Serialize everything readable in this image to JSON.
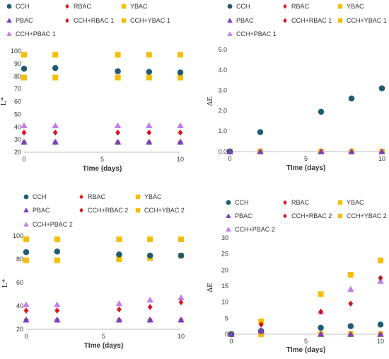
{
  "colors": {
    "CCH": "#1F5C74",
    "RBAC": "#E3121B",
    "YBAC": "#F7BE00",
    "PBAC": "#7E3FBF",
    "CCH_RBAC": "#C8141E",
    "CCH_YBAC": "#F7BE00",
    "CCH_PBAC": "#C77AF0"
  },
  "chart_data": [
    {
      "type": "scatter",
      "title": "",
      "xlabel": "TIme (days)",
      "ylabel": "L*",
      "xlim": [
        0,
        10
      ],
      "ylim": [
        20,
        100
      ],
      "xticks": [
        "0",
        "5",
        "10"
      ],
      "yticks": [
        "20",
        "30",
        "40",
        "50",
        "60",
        "70",
        "80",
        "90",
        "100"
      ],
      "x": [
        0,
        2,
        6,
        8,
        10
      ],
      "legend": [
        "CCH",
        "RBAC",
        "YBAC",
        "PBAC",
        "CCH+RBAC 1",
        "CCH+YBAC 1",
        "CCH+PBAC 1"
      ],
      "series": [
        {
          "name": "CCH",
          "values": [
            86,
            86.5,
            84,
            83.5,
            83
          ]
        },
        {
          "name": "RBAC",
          "values": [
            35.5,
            35.5,
            35.5,
            35.5,
            35.5
          ]
        },
        {
          "name": "YBAC",
          "values": [
            97,
            97,
            97,
            97,
            97
          ]
        },
        {
          "name": "PBAC",
          "values": [
            28,
            28,
            28,
            28,
            28
          ]
        },
        {
          "name": "CCH+RBAC 1",
          "values": [
            28,
            28,
            28,
            28,
            28
          ]
        },
        {
          "name": "CCH+YBAC 1",
          "values": [
            79,
            79,
            79,
            79,
            79
          ]
        },
        {
          "name": "CCH+PBAC 1",
          "values": [
            41,
            41,
            41,
            41,
            41
          ]
        }
      ]
    },
    {
      "type": "scatter",
      "title": "",
      "xlabel": "TIme (days)",
      "ylabel": "ΔE",
      "xlim": [
        0,
        10
      ],
      "ylim": [
        0,
        5
      ],
      "xticks": [
        "0",
        "5",
        "10"
      ],
      "yticks": [
        "0.0",
        "1.0",
        "2.0",
        "3.0",
        "4.0",
        "5.0"
      ],
      "x": [
        0,
        2,
        6,
        8,
        10
      ],
      "legend": [
        "CCH",
        "RBAC",
        "YBAC",
        "PBAC",
        "CCH+RBAC 1",
        "CCH+YBAC 1",
        "CCH+PBAC 1"
      ],
      "series": [
        {
          "name": "CCH",
          "values": [
            0,
            0.95,
            1.95,
            2.6,
            3.1
          ]
        },
        {
          "name": "RBAC",
          "values": [
            0,
            0,
            0,
            0,
            0
          ]
        },
        {
          "name": "YBAC",
          "values": [
            0,
            0,
            0,
            0,
            0
          ]
        },
        {
          "name": "PBAC",
          "values": [
            0,
            0,
            0,
            0,
            0
          ]
        },
        {
          "name": "CCH+RBAC 1",
          "values": [
            0,
            0,
            0,
            0,
            0
          ]
        },
        {
          "name": "CCH+YBAC 1",
          "values": [
            0,
            0,
            0,
            0,
            0
          ]
        },
        {
          "name": "CCH+PBAC 1",
          "values": [
            0,
            0,
            0,
            0,
            0
          ]
        }
      ]
    },
    {
      "type": "scatter",
      "title": "",
      "xlabel": "TIme (days)",
      "ylabel": "L*",
      "xlim": [
        0,
        10
      ],
      "ylim": [
        20,
        100
      ],
      "xticks": [
        "0",
        "5",
        "10"
      ],
      "yticks": [
        "20",
        "40",
        "60",
        "80",
        "100"
      ],
      "x": [
        0,
        2,
        6,
        8,
        10
      ],
      "legend": [
        "CCH",
        "RBAC",
        "YBAC",
        "PBAC",
        "CCH+RBAC 2",
        "CCH+YBAC 2",
        "CCH+PBAC 2"
      ],
      "series": [
        {
          "name": "CCH",
          "values": [
            86,
            86.5,
            84,
            83,
            83
          ]
        },
        {
          "name": "RBAC",
          "values": [
            36,
            36,
            37,
            39,
            43
          ]
        },
        {
          "name": "YBAC",
          "values": [
            97,
            97,
            97,
            97,
            97
          ]
        },
        {
          "name": "PBAC",
          "values": [
            28,
            28,
            28,
            28,
            28
          ]
        },
        {
          "name": "CCH+RBAC 2",
          "values": [
            28,
            28,
            28,
            28,
            28
          ]
        },
        {
          "name": "CCH+YBAC 2",
          "values": [
            79,
            79,
            80,
            81,
            83
          ]
        },
        {
          "name": "CCH+PBAC 2",
          "values": [
            41,
            41,
            42,
            45,
            47
          ]
        }
      ]
    },
    {
      "type": "scatter",
      "title": "",
      "xlabel": "TIme (days)",
      "ylabel": "ΔE",
      "xlim": [
        0,
        10
      ],
      "ylim": [
        0,
        30
      ],
      "xticks": [
        "0",
        "5",
        "10"
      ],
      "yticks": [
        "0",
        "5",
        "10",
        "15",
        "20",
        "25",
        "30"
      ],
      "x": [
        0,
        2,
        6,
        8,
        10
      ],
      "legend": [
        "CCH",
        "RBAC",
        "YBAC",
        "PBAC",
        "CCH+RBAC 2",
        "CCH+YBAC 2",
        "CCH+PBAC 2"
      ],
      "series": [
        {
          "name": "CCH",
          "values": [
            0,
            1,
            2,
            2.5,
            3
          ]
        },
        {
          "name": "RBAC",
          "values": [
            0,
            0,
            0,
            0,
            0
          ]
        },
        {
          "name": "YBAC",
          "values": [
            0,
            0,
            0,
            0,
            0
          ]
        },
        {
          "name": "PBAC",
          "values": [
            0,
            1,
            0,
            0,
            0
          ]
        },
        {
          "name": "CCH+RBAC 2",
          "values": [
            0,
            3,
            7,
            9.5,
            17.5
          ]
        },
        {
          "name": "CCH+YBAC 2",
          "values": [
            0,
            4,
            12.5,
            18.5,
            23
          ]
        },
        {
          "name": "CCH+PBAC 2",
          "values": [
            0,
            1.2,
            7,
            14,
            16.5
          ]
        }
      ]
    }
  ]
}
